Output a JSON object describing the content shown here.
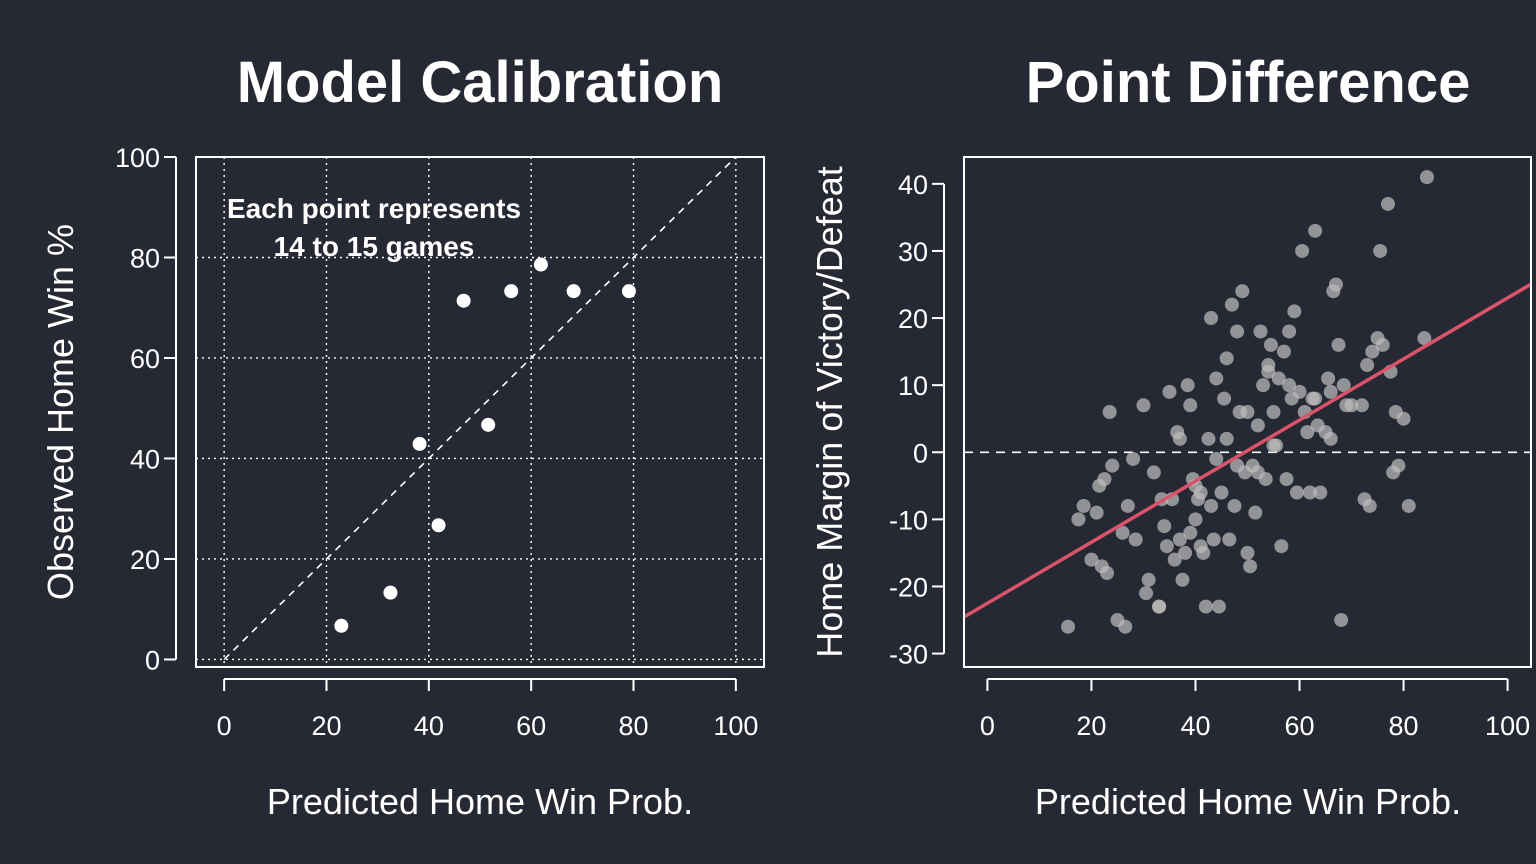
{
  "colors": {
    "background": "#262833",
    "foreground": "#ffffff",
    "point_gray": "#bdbdbd",
    "trend_line": "#d9546a"
  },
  "chart_data": [
    {
      "type": "scatter",
      "title": "Model Calibration",
      "xlabel": "Predicted Home Win Prob.",
      "ylabel": "Observed Home Win %",
      "xlim": [
        -5.5,
        105.5
      ],
      "ylim": [
        -1.5,
        100
      ],
      "x_ticks": [
        0,
        20,
        40,
        60,
        80,
        100
      ],
      "y_ticks": [
        0,
        20,
        40,
        60,
        80,
        100
      ],
      "grid": true,
      "reference_line": "identity (y = x), dashed",
      "annotation": [
        "Each point represents",
        "14 to 15 games"
      ],
      "series": [
        {
          "points": [
            [
              22.9,
              6.7
            ],
            [
              32.5,
              13.3
            ],
            [
              38.2,
              42.9
            ],
            [
              41.9,
              26.7
            ],
            [
              46.8,
              71.4
            ],
            [
              51.6,
              46.7
            ],
            [
              56.1,
              73.3
            ],
            [
              61.9,
              78.6
            ],
            [
              68.3,
              73.3
            ],
            [
              79.1,
              73.3
            ]
          ]
        }
      ]
    },
    {
      "type": "scatter",
      "title": "Point Difference",
      "xlabel": "Predicted Home Win Prob.",
      "ylabel": "Home Margin of Victory/Defeat",
      "xlim": [
        -4.5,
        104.5
      ],
      "ylim": [
        -32,
        44
      ],
      "x_ticks": [
        0,
        20,
        40,
        60,
        80,
        100
      ],
      "y_ticks": [
        -30,
        -20,
        -10,
        0,
        10,
        20,
        30,
        40
      ],
      "grid": false,
      "reference_line": "y = 0, dashed",
      "fit_line": {
        "intercept": -22.5,
        "slope": 0.455
      },
      "series": [
        {
          "points": [
            [
              15.5,
              -26
            ],
            [
              17.5,
              -10
            ],
            [
              18.5,
              -8
            ],
            [
              20,
              -16
            ],
            [
              21,
              -9
            ],
            [
              21.5,
              -5
            ],
            [
              22,
              -17
            ],
            [
              22.5,
              -4
            ],
            [
              23,
              -18
            ],
            [
              23.5,
              6
            ],
            [
              24,
              -2
            ],
            [
              25,
              -25
            ],
            [
              26,
              -12
            ],
            [
              26.5,
              -26
            ],
            [
              27,
              -8
            ],
            [
              28,
              -1
            ],
            [
              28.5,
              -13
            ],
            [
              30,
              7
            ],
            [
              30.5,
              -21
            ],
            [
              31,
              -19
            ],
            [
              32,
              -3
            ],
            [
              33,
              -23
            ],
            [
              33.5,
              -7
            ],
            [
              34,
              -11
            ],
            [
              34.5,
              -14
            ],
            [
              35,
              9
            ],
            [
              35.5,
              -7
            ],
            [
              36,
              -16
            ],
            [
              36.5,
              3
            ],
            [
              37,
              2
            ],
            [
              37.5,
              -19
            ],
            [
              38,
              -15
            ],
            [
              38.5,
              10
            ],
            [
              39,
              -12
            ],
            [
              39.5,
              -4
            ],
            [
              40,
              -10
            ],
            [
              40.5,
              -7
            ],
            [
              41,
              -14
            ],
            [
              41.5,
              -15
            ],
            [
              42,
              -23
            ],
            [
              42.5,
              2
            ],
            [
              43,
              20
            ],
            [
              43.5,
              -13
            ],
            [
              44,
              -1
            ],
            [
              44.5,
              -23
            ],
            [
              45,
              -6
            ],
            [
              45.5,
              8
            ],
            [
              46,
              2
            ],
            [
              46.5,
              -13
            ],
            [
              47,
              22
            ],
            [
              47.5,
              -8
            ],
            [
              48,
              18
            ],
            [
              48.5,
              6
            ],
            [
              49,
              24
            ],
            [
              49.5,
              -3
            ],
            [
              50,
              -15
            ],
            [
              50.5,
              -17
            ],
            [
              51,
              -2
            ],
            [
              51.5,
              -9
            ],
            [
              52,
              4
            ],
            [
              52.5,
              18
            ],
            [
              53,
              10
            ],
            [
              53.5,
              -4
            ],
            [
              54,
              13
            ],
            [
              54.5,
              16
            ],
            [
              55,
              6
            ],
            [
              55.5,
              1
            ],
            [
              56,
              11
            ],
            [
              56.5,
              -14
            ],
            [
              57,
              15
            ],
            [
              57.5,
              -4
            ],
            [
              58,
              18
            ],
            [
              58.5,
              8
            ],
            [
              59,
              21
            ],
            [
              59.5,
              -6
            ],
            [
              60,
              9
            ],
            [
              60.5,
              30
            ],
            [
              61,
              6
            ],
            [
              61.5,
              3
            ],
            [
              62,
              -6
            ],
            [
              62.5,
              8
            ],
            [
              63,
              33
            ],
            [
              63.5,
              4
            ],
            [
              64,
              -6
            ],
            [
              65,
              3
            ],
            [
              65.5,
              11
            ],
            [
              66,
              2
            ],
            [
              66.5,
              24
            ],
            [
              67,
              25
            ],
            [
              67.5,
              16
            ],
            [
              68,
              -25
            ],
            [
              68.5,
              10
            ],
            [
              69,
              7
            ],
            [
              70,
              7
            ],
            [
              72,
              7
            ],
            [
              72.5,
              -7
            ],
            [
              73,
              13
            ],
            [
              73.5,
              -8
            ],
            [
              74,
              15
            ],
            [
              75,
              17
            ],
            [
              75.5,
              30
            ],
            [
              76,
              16
            ],
            [
              77,
              37
            ],
            [
              77.5,
              12
            ],
            [
              78,
              -3
            ],
            [
              78.5,
              6
            ],
            [
              79,
              -2
            ],
            [
              80,
              5
            ],
            [
              81,
              -8
            ],
            [
              84,
              17
            ],
            [
              84.5,
              41
            ],
            [
              58,
              10
            ],
            [
              54,
              12
            ],
            [
              46,
              14
            ],
            [
              44,
              11
            ],
            [
              39,
              7
            ],
            [
              37,
              -13
            ],
            [
              41,
              -6
            ],
            [
              43,
              -8
            ],
            [
              50,
              6
            ],
            [
              52,
              -3
            ],
            [
              63,
              8
            ],
            [
              66,
              9
            ],
            [
              40,
              -5
            ],
            [
              48,
              -2
            ],
            [
              55,
              1
            ],
            [
              33,
              -23
            ]
          ]
        }
      ]
    }
  ]
}
